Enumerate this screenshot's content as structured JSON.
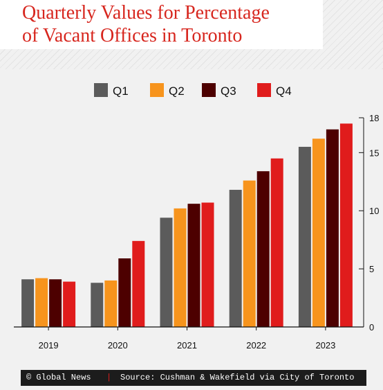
{
  "title_lines": [
    "Quarterly Values for Percentage",
    "of Vacant Offices in Toronto"
  ],
  "footer": {
    "credit": "© Global News",
    "separator": "|",
    "source": "Source: Cushman & Wakefield via City of Toronto"
  },
  "chart_data": {
    "type": "bar",
    "categories": [
      "2019",
      "2020",
      "2021",
      "2022",
      "2023"
    ],
    "series": [
      {
        "name": "Q1",
        "color": "#5b5b5b",
        "values": [
          4.1,
          3.8,
          9.4,
          11.8,
          15.5
        ]
      },
      {
        "name": "Q2",
        "color": "#f7941d",
        "values": [
          4.2,
          4.0,
          10.2,
          12.6,
          16.2
        ]
      },
      {
        "name": "Q3",
        "color": "#4d0000",
        "values": [
          4.1,
          5.9,
          10.6,
          13.4,
          17.0
        ]
      },
      {
        "name": "Q4",
        "color": "#e01c1c",
        "values": [
          3.9,
          7.4,
          10.7,
          14.5,
          17.5
        ]
      }
    ],
    "y_ticks": [
      "0",
      "5",
      "10",
      "15",
      "18"
    ],
    "ylim": [
      0,
      18
    ],
    "legend_position": "top-center",
    "axis_side": "right",
    "grid": false
  }
}
